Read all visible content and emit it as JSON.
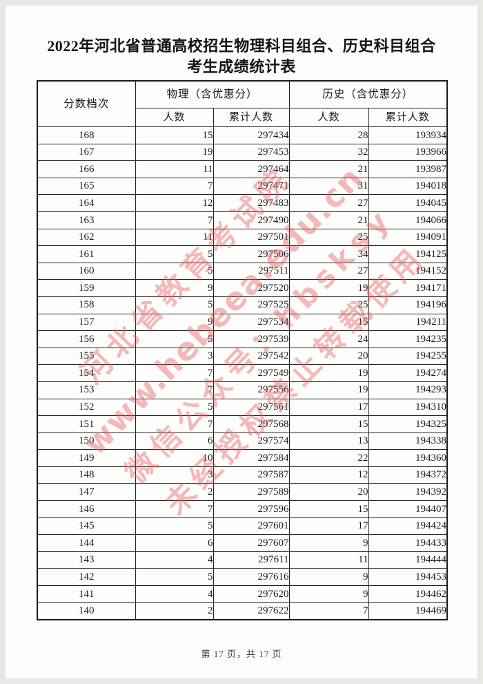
{
  "page": {
    "title_line1": "2022年河北省普通高校招生物理科目组合、历史科目组合",
    "title_line2": "考生成绩统计表",
    "footer": "第 17 页，共 17 页"
  },
  "table": {
    "header": {
      "score_level": "分数档次",
      "physics_group": "物理（含优惠分）",
      "history_group": "历史（含优惠分）",
      "count": "人数",
      "cumulative": "累计人数"
    },
    "rows": [
      {
        "score": "168",
        "phy_count": "15",
        "phy_cum": "297434",
        "his_count": "28",
        "his_cum": "193934"
      },
      {
        "score": "167",
        "phy_count": "19",
        "phy_cum": "297453",
        "his_count": "32",
        "his_cum": "193966"
      },
      {
        "score": "166",
        "phy_count": "11",
        "phy_cum": "297464",
        "his_count": "21",
        "his_cum": "193987"
      },
      {
        "score": "165",
        "phy_count": "7",
        "phy_cum": "297471",
        "his_count": "31",
        "his_cum": "194018"
      },
      {
        "score": "164",
        "phy_count": "12",
        "phy_cum": "297483",
        "his_count": "27",
        "his_cum": "194045"
      },
      {
        "score": "163",
        "phy_count": "7",
        "phy_cum": "297490",
        "his_count": "21",
        "his_cum": "194066"
      },
      {
        "score": "162",
        "phy_count": "11",
        "phy_cum": "297501",
        "his_count": "25",
        "his_cum": "194091"
      },
      {
        "score": "161",
        "phy_count": "5",
        "phy_cum": "297506",
        "his_count": "34",
        "his_cum": "194125"
      },
      {
        "score": "160",
        "phy_count": "5",
        "phy_cum": "297511",
        "his_count": "27",
        "his_cum": "194152"
      },
      {
        "score": "159",
        "phy_count": "9",
        "phy_cum": "297520",
        "his_count": "19",
        "his_cum": "194171"
      },
      {
        "score": "158",
        "phy_count": "5",
        "phy_cum": "297525",
        "his_count": "25",
        "his_cum": "194196"
      },
      {
        "score": "157",
        "phy_count": "9",
        "phy_cum": "297534",
        "his_count": "15",
        "his_cum": "194211"
      },
      {
        "score": "156",
        "phy_count": "5",
        "phy_cum": "297539",
        "his_count": "24",
        "his_cum": "194235"
      },
      {
        "score": "155",
        "phy_count": "3",
        "phy_cum": "297542",
        "his_count": "20",
        "his_cum": "194255"
      },
      {
        "score": "154",
        "phy_count": "7",
        "phy_cum": "297549",
        "his_count": "19",
        "his_cum": "194274"
      },
      {
        "score": "153",
        "phy_count": "7",
        "phy_cum": "297556",
        "his_count": "19",
        "his_cum": "194293"
      },
      {
        "score": "152",
        "phy_count": "5",
        "phy_cum": "297561",
        "his_count": "17",
        "his_cum": "194310"
      },
      {
        "score": "151",
        "phy_count": "7",
        "phy_cum": "297568",
        "his_count": "15",
        "his_cum": "194325"
      },
      {
        "score": "150",
        "phy_count": "6",
        "phy_cum": "297574",
        "his_count": "13",
        "his_cum": "194338"
      },
      {
        "score": "149",
        "phy_count": "10",
        "phy_cum": "297584",
        "his_count": "22",
        "his_cum": "194360"
      },
      {
        "score": "148",
        "phy_count": "3",
        "phy_cum": "297587",
        "his_count": "12",
        "his_cum": "194372"
      },
      {
        "score": "147",
        "phy_count": "2",
        "phy_cum": "297589",
        "his_count": "20",
        "his_cum": "194392"
      },
      {
        "score": "146",
        "phy_count": "7",
        "phy_cum": "297596",
        "his_count": "15",
        "his_cum": "194407"
      },
      {
        "score": "145",
        "phy_count": "5",
        "phy_cum": "297601",
        "his_count": "17",
        "his_cum": "194424"
      },
      {
        "score": "144",
        "phy_count": "6",
        "phy_cum": "297607",
        "his_count": "9",
        "his_cum": "194433"
      },
      {
        "score": "143",
        "phy_count": "4",
        "phy_cum": "297611",
        "his_count": "11",
        "his_cum": "194444"
      },
      {
        "score": "142",
        "phy_count": "5",
        "phy_cum": "297616",
        "his_count": "9",
        "his_cum": "194453"
      },
      {
        "score": "141",
        "phy_count": "4",
        "phy_cum": "297620",
        "his_count": "9",
        "his_cum": "194462"
      },
      {
        "score": "140",
        "phy_count": "2",
        "phy_cum": "297622",
        "his_count": "7",
        "his_cum": "194469"
      }
    ]
  },
  "watermark": {
    "color": "#e45858",
    "lines": [
      "河北省教育考试院",
      "www.hebeea.edu.cn",
      "微信公众号：hbsksy",
      "未经授权禁止转载使用"
    ]
  }
}
